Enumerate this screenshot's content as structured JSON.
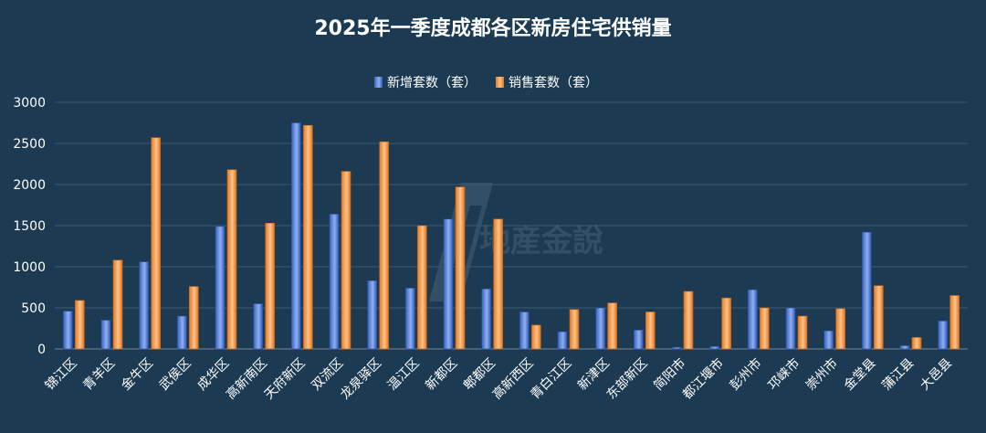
{
  "chart_data": {
    "type": "bar",
    "title": "2025年一季度成都各区新房住宅供销量",
    "xlabel": "",
    "ylabel": "",
    "ylim": [
      0,
      3000
    ],
    "yticks": [
      0,
      500,
      1000,
      1500,
      2000,
      2500,
      3000
    ],
    "grid": true,
    "legend_position": "top-center",
    "categories": [
      "锦江区",
      "青羊区",
      "金牛区",
      "武侯区",
      "成华区",
      "高新南区",
      "天府新区",
      "双流区",
      "龙泉驿区",
      "温江区",
      "新都区",
      "郫都区",
      "高新西区",
      "青白江区",
      "新津区",
      "东部新区",
      "简阳市",
      "都江堰市",
      "彭州市",
      "邛崃市",
      "崇州市",
      "金堂县",
      "蒲江县",
      "大邑县"
    ],
    "series": [
      {
        "name": "新增套数（套）",
        "color": "#4a78d0",
        "values": [
          460,
          350,
          1060,
          400,
          1490,
          550,
          2750,
          1640,
          830,
          740,
          1580,
          730,
          450,
          210,
          500,
          230,
          20,
          30,
          720,
          500,
          220,
          1420,
          40,
          340
        ]
      },
      {
        "name": "销售套数（套）",
        "color": "#f08a2c",
        "values": [
          590,
          1080,
          2570,
          760,
          2180,
          1530,
          2720,
          2160,
          2520,
          1500,
          1970,
          1580,
          290,
          480,
          560,
          450,
          700,
          620,
          500,
          400,
          490,
          770,
          140,
          650
        ]
      }
    ]
  },
  "watermark": "地産金說"
}
